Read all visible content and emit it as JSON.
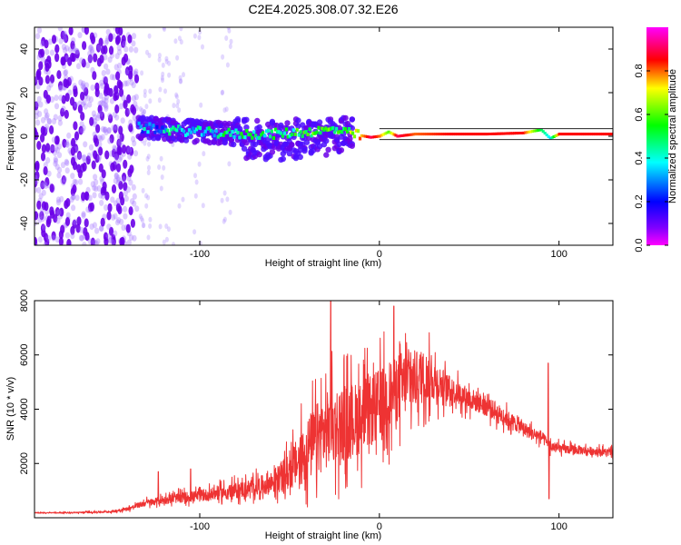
{
  "title": "C2E4.2025.308.07.32.E26",
  "chart_data": [
    {
      "type": "heatmap",
      "xlabel": "Height of straight line (km)",
      "ylabel": "Frequency (Hz)",
      "xlim": [
        -192,
        130
      ],
      "ylim": [
        -50,
        50
      ],
      "xticks": [
        -100,
        0,
        100
      ],
      "xtick_labels": [
        "-100",
        "0",
        "100"
      ],
      "yticks": [
        -40,
        -20,
        0,
        20,
        40
      ],
      "ytick_labels": [
        "-40",
        "-20",
        "0",
        "20",
        "40"
      ],
      "colorbar": {
        "label": "Normalized spectral amplitude",
        "range": [
          0,
          1
        ],
        "ticks": [
          0.0,
          0.2,
          0.4,
          0.6,
          0.8
        ],
        "tick_labels": [
          "0.0",
          "0.2",
          "0.4",
          "0.6",
          "0.8"
        ],
        "colormap": "rainbow (magenta-blue-cyan-green-yellow-red-magenta)"
      },
      "ridge": {
        "x": [
          -132,
          -120,
          -100,
          -80,
          -60,
          -40,
          -25,
          -15,
          -5,
          0,
          5,
          10,
          20,
          40,
          60,
          80,
          90,
          95,
          100,
          110,
          130
        ],
        "freq": [
          4,
          3,
          2,
          1,
          1,
          2,
          3,
          1,
          -0.5,
          0,
          2,
          0,
          1,
          1,
          1,
          1.5,
          3,
          -1,
          1,
          1,
          1
        ],
        "amplitude": [
          0.3,
          0.35,
          0.4,
          0.45,
          0.45,
          0.5,
          0.55,
          0.6,
          0.9,
          0.8,
          0.6,
          0.9,
          0.8,
          0.85,
          0.85,
          0.85,
          0.5,
          0.35,
          0.85,
          0.85,
          0.85
        ]
      },
      "noise_region": {
        "x_range": [
          -192,
          -135
        ],
        "freq_range": [
          -50,
          50
        ],
        "amplitude": 0.2
      }
    },
    {
      "type": "line",
      "xlabel": "Height of straight line (km)",
      "ylabel": "SNR (10 * v/v)",
      "xlim": [
        -192,
        130
      ],
      "ylim": [
        0,
        8000
      ],
      "xticks": [
        -100,
        0,
        100
      ],
      "xtick_labels": [
        "-100",
        "0",
        "100"
      ],
      "yticks": [
        2000,
        4000,
        6000,
        8000
      ],
      "ytick_labels": [
        "2000",
        "4000",
        "6000",
        "8000"
      ],
      "series": [
        {
          "name": "SNR",
          "color": "#ee3333",
          "x": [
            -192,
            -170,
            -150,
            -140,
            -130,
            -120,
            -110,
            -100,
            -90,
            -80,
            -70,
            -60,
            -50,
            -45,
            -40,
            -35,
            -30,
            -25,
            -20,
            -15,
            -10,
            -5,
            0,
            5,
            10,
            15,
            20,
            25,
            30,
            35,
            40,
            50,
            60,
            70,
            80,
            85,
            90,
            94,
            96,
            100,
            110,
            120,
            130
          ],
          "values": [
            180,
            190,
            220,
            330,
            550,
            650,
            750,
            800,
            900,
            1000,
            1100,
            1300,
            1700,
            2100,
            2500,
            2900,
            3200,
            3400,
            3500,
            3600,
            3700,
            3900,
            4200,
            4500,
            4800,
            5000,
            5100,
            5200,
            5100,
            4900,
            4700,
            4400,
            4100,
            3700,
            3300,
            3100,
            3000,
            2700,
            2600,
            2550,
            2500,
            2450,
            2400
          ],
          "spikes": [
            {
              "x": -27,
              "value": 8000
            },
            {
              "x": 8,
              "value": 7800
            },
            {
              "x": 94,
              "value": 5700
            },
            {
              "x": 94.5,
              "value": 700
            },
            {
              "x": -123,
              "value": 1700
            },
            {
              "x": -105,
              "value": 1800
            }
          ],
          "noise_rel": [
            {
              "x": -192,
              "r": 0.1
            },
            {
              "x": -135,
              "r": 0.25
            },
            {
              "x": -60,
              "r": 0.4
            },
            {
              "x": -40,
              "r": 0.6
            },
            {
              "x": -10,
              "r": 0.45
            },
            {
              "x": 15,
              "r": 0.3
            },
            {
              "x": 40,
              "r": 0.12
            },
            {
              "x": 130,
              "r": 0.07
            }
          ]
        }
      ]
    }
  ]
}
